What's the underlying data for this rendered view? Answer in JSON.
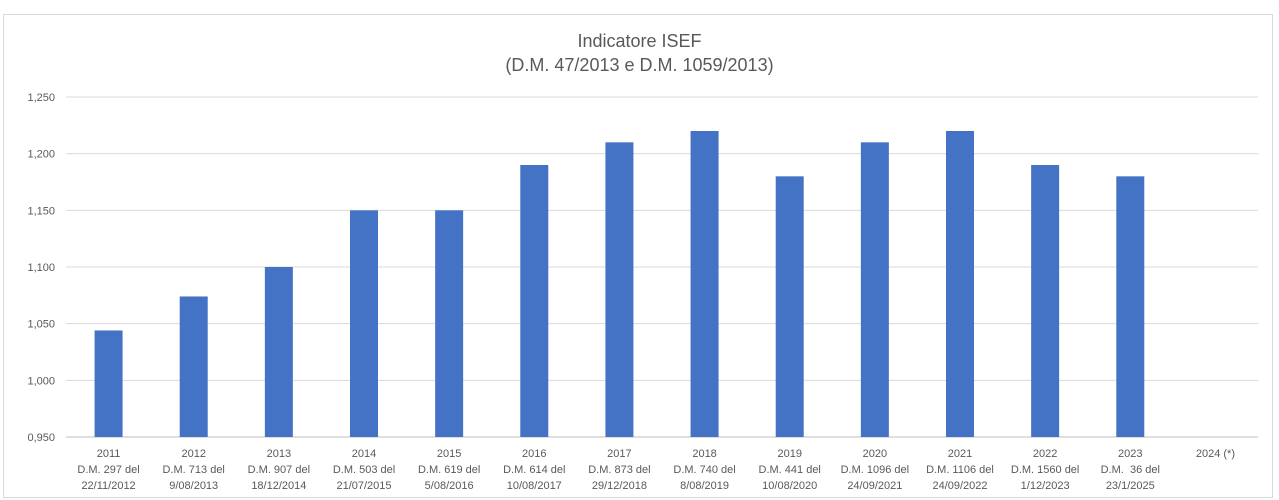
{
  "chart_data": {
    "type": "bar",
    "title": "Indicatore ISEF",
    "subtitle": "(D.M. 47/2013 e D.M. 1059/2013)",
    "xlabel": "",
    "ylabel": "",
    "ylim": [
      0.95,
      1.25
    ],
    "yticks": [
      "1,250",
      "1,200",
      "1,150",
      "1,100",
      "1,050",
      "1,000",
      "0,950"
    ],
    "ytick_values": [
      1.25,
      1.2,
      1.15,
      1.1,
      1.05,
      1.0,
      0.95
    ],
    "grid": true,
    "bar_color": "#4472c4",
    "categories": [
      [
        "2011",
        "D.M. 297 del",
        "22/11/2012"
      ],
      [
        "2012",
        "D.M. 713 del",
        "9/08/2013"
      ],
      [
        "2013",
        "D.M. 907 del",
        "18/12/2014"
      ],
      [
        "2014",
        "D.M. 503 del",
        "21/07/2015"
      ],
      [
        "2015",
        "D.M. 619 del",
        "5/08/2016"
      ],
      [
        "2016",
        "D.M. 614 del",
        "10/08/2017"
      ],
      [
        "2017",
        "D.M. 873 del",
        "29/12/2018"
      ],
      [
        "2018",
        "D.M. 740 del",
        "8/08/2019"
      ],
      [
        "2019",
        "D.M. 441 del",
        "10/08/2020"
      ],
      [
        "2020",
        "D.M. 1096 del",
        "24/09/2021"
      ],
      [
        "2021",
        "D.M. 1106 del",
        "24/09/2022"
      ],
      [
        "2022",
        "D.M. 1560 del",
        "1/12/2023"
      ],
      [
        "2023",
        "D.M.  36 del",
        "23/1/2025"
      ],
      [
        "2024 (*)"
      ]
    ],
    "values": [
      1.044,
      1.074,
      1.1,
      1.15,
      1.15,
      1.19,
      1.21,
      1.22,
      1.18,
      1.21,
      1.22,
      1.19,
      1.18,
      null
    ]
  }
}
